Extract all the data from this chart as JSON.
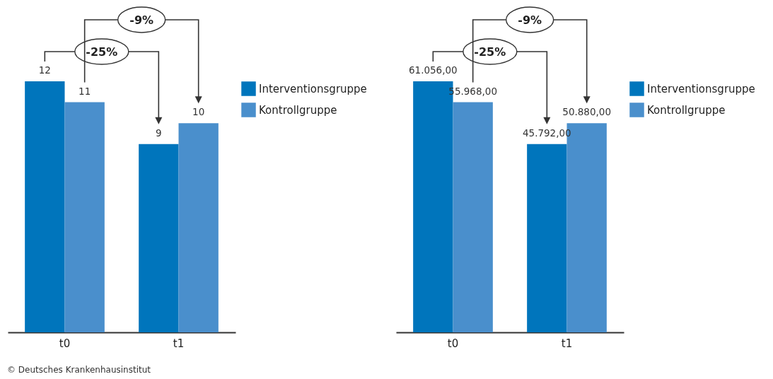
{
  "chart_data": [
    {
      "type": "bar",
      "categories": [
        "t0",
        "t1"
      ],
      "series": [
        {
          "name": "Interventionsgruppe",
          "color": "#0075bc",
          "values": [
            12,
            9
          ]
        },
        {
          "name": "Kontrollgruppe",
          "color": "#4a8fcc",
          "values": [
            11,
            10
          ]
        }
      ],
      "data_labels": true,
      "legend": "right",
      "annotations": [
        "-25%",
        "-9%",
        "© Deutsches Krankenhausinstitut"
      ]
    },
    {
      "type": "bar",
      "categories": [
        "t0",
        "t1"
      ],
      "series": [
        {
          "name": "Interventionsgruppe",
          "color": "#0075bc",
          "values": [
            61056,
            45792
          ],
          "value_labels": [
            "61.056,00",
            "45.792,00"
          ]
        },
        {
          "name": "Kontrollgruppe",
          "color": "#4a8fcc",
          "values": [
            55968,
            50880
          ],
          "value_labels": [
            "55.968,00",
            "50.880,00"
          ]
        }
      ],
      "legend": "right",
      "annotations": [
        "-25%",
        "-9%"
      ]
    }
  ]
}
